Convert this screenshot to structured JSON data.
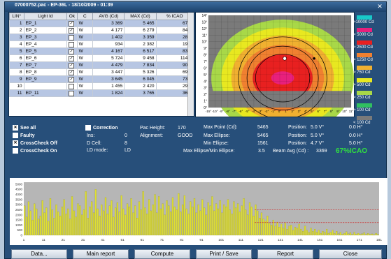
{
  "window": {
    "title": "07000752.pac - EP-36L - 18/10/2009 - 01:39"
  },
  "table": {
    "headers": [
      "LIN°",
      "Light Id",
      "Ok",
      "C",
      "AVG (Cd)",
      "MAX (Cd)",
      "% ICAO"
    ],
    "rows": [
      {
        "lin": "1",
        "id": "EP_1",
        "ok": true,
        "c": "W",
        "avg": "3 369",
        "max": "5 465",
        "icao": "67%",
        "sel": true
      },
      {
        "lin": "2",
        "id": "EP_2",
        "ok": true,
        "c": "W",
        "avg": "4 177",
        "max": "6 279",
        "icao": "84%",
        "sel": false
      },
      {
        "lin": "3",
        "id": "EP_3",
        "ok": false,
        "c": "W",
        "avg": "1 402",
        "max": "3 359",
        "icao": "28%",
        "sel": true
      },
      {
        "lin": "4",
        "id": "EP_4",
        "ok": false,
        "c": "W",
        "avg": "934",
        "max": "2 382",
        "icao": "19%",
        "sel": false
      },
      {
        "lin": "5",
        "id": "EP_5",
        "ok": true,
        "c": "W",
        "avg": "4 167",
        "max": "6 517",
        "icao": "83%",
        "sel": true
      },
      {
        "lin": "6",
        "id": "EP_6",
        "ok": true,
        "c": "W",
        "avg": "5 724",
        "max": "9 458",
        "icao": "114%",
        "sel": false
      },
      {
        "lin": "7",
        "id": "EP_7",
        "ok": true,
        "c": "W",
        "avg": "4 479",
        "max": "7 834",
        "icao": "90%",
        "sel": true
      },
      {
        "lin": "8",
        "id": "EP_8",
        "ok": true,
        "c": "W",
        "avg": "3 447",
        "max": "5 326",
        "icao": "69%",
        "sel": false
      },
      {
        "lin": "9",
        "id": "EP_9",
        "ok": true,
        "c": "W",
        "avg": "3 645",
        "max": "6 045",
        "icao": "73%",
        "sel": true
      },
      {
        "lin": "10",
        "id": "",
        "ok": false,
        "c": "W",
        "avg": "1 455",
        "max": "2 420",
        "icao": "29%",
        "sel": false
      },
      {
        "lin": "11",
        "id": "EP_11",
        "ok": false,
        "c": "W",
        "avg": "1 824",
        "max": "3 765",
        "icao": "36%",
        "sel": true
      }
    ]
  },
  "isocandela": {
    "y_ticks": [
      "14°",
      "13°",
      "12°",
      "11°",
      "10°",
      "9°",
      "8°",
      "7°",
      "6°",
      "5°",
      "4°",
      "3°",
      "2°",
      "1°",
      "0°"
    ],
    "x_ticks": [
      "-15°",
      "-10°",
      "-9°",
      "-8°",
      "-7°",
      "-6°",
      "-5°",
      "-4°",
      "-3°",
      "-2°",
      "-1°",
      "0°",
      "1°",
      "2°",
      "3°",
      "4°",
      "5°",
      "6°",
      "7°",
      "8°",
      "9°",
      "10°",
      "11°"
    ]
  },
  "legend": [
    {
      "label": ">10000  Cd",
      "color": "#18c8c8"
    },
    {
      "label": "> 5000 Cd",
      "color": "#e8207c"
    },
    {
      "label": "> 2500 Cd",
      "color": "#e82020"
    },
    {
      "label": "> 1250 Cd",
      "color": "#f08030"
    },
    {
      "label": "> 750 Cd",
      "color": "#f0b030"
    },
    {
      "label": "> 500 Cd",
      "color": "#e8e820"
    },
    {
      "label": "> 250 Cd",
      "color": "#a8d848"
    },
    {
      "label": "> 100 Cd",
      "color": "#30c060"
    },
    {
      "label": "< 100 Cd",
      "color": "#7a7a7a"
    }
  ],
  "options": {
    "see_all": "See all",
    "faulty": "Faulty",
    "crosscheck_off": "CrossCheck Off",
    "crosscheck_on": "CrossCheck On",
    "correction": "Correction"
  },
  "info": {
    "ins_label": "Ins:",
    "ins_value": "0",
    "dcell_label": "D Cell:",
    "dcell_value": "8",
    "ldmode_label": "LD mode:",
    "ldmode_value": "LD",
    "pac_height_label": "Pac Height:",
    "pac_height_value": "170",
    "alignment_label": "Alignment:",
    "alignment_value": "GOOD",
    "max_point_label": "Max Point (Cd):",
    "max_point_value": "5465",
    "max_ellipse_label": "Max Ellipse:",
    "max_ellipse_value": "5465",
    "min_ellipse_label": "Min Ellipse:",
    "min_ellipse_value": "1561",
    "position_label": "Position:",
    "pos1_v": "5.0  V°",
    "pos1_h": "0.0  H°",
    "pos2_v": "5.0  V°",
    "pos2_h": "0.0  H°",
    "pos3_v": "4.7  V°",
    "pos3_h": "5.0  H°",
    "ratio_label": "Max Ellipse/Min Ellipse:",
    "ratio_value": "3.5",
    "beam_avg_label": "Beam Avg (Cd) :",
    "beam_avg_value": "3369",
    "icao_pct": "67%ICAO"
  },
  "chart_data": {
    "type": "bar",
    "y_ticks": [
      "5000",
      "4500",
      "4000",
      "3500",
      "3000",
      "2500",
      "2000",
      "1500",
      "1000",
      "500",
      "0"
    ],
    "ylim": [
      0,
      5200
    ],
    "x_ticks": [
      "1",
      "11",
      "21",
      "31",
      "41",
      "51",
      "61",
      "71",
      "81",
      "91",
      "101",
      "111",
      "121",
      "131",
      "141",
      "151",
      "161",
      "171",
      "181"
    ],
    "values": [
      2900,
      1800,
      3300,
      2400,
      1500,
      3100,
      2600,
      1600,
      1900,
      3400,
      2200,
      2700,
      1400,
      3600,
      2500,
      1700,
      3000,
      2300,
      1900,
      2800,
      3500,
      2100,
      2600,
      1600,
      3800,
      2400,
      1800,
      3100,
      2900,
      2000,
      2500,
      4300,
      1700,
      2800,
      3300,
      2200,
      4500,
      2600,
      1900,
      3000,
      2400,
      3700,
      2100,
      2900,
      3400,
      1800,
      2700,
      3200,
      2300,
      3900,
      2600,
      2000,
      3100,
      2800,
      3600,
      2200,
      2900,
      1700,
      3300,
      2500,
      4300,
      2700,
      2100,
      3500,
      2400,
      3000,
      4000,
      2200,
      3800,
      2600,
      3100,
      2000,
      3400,
      2900,
      2300,
      3700,
      2800,
      2500,
      4100,
      2300,
      3000,
      3900,
      2600,
      2100,
      3300,
      2800,
      3600,
      2200,
      3000,
      2400,
      3500,
      2700,
      2000,
      3200,
      2900,
      3800,
      2400,
      3100,
      2600,
      3400,
      2200,
      3000,
      2800,
      3500,
      2500,
      2100,
      3300,
      2700,
      3100,
      2300,
      2900,
      3600,
      2500,
      2000,
      3200,
      2800,
      1900,
      3000,
      2400,
      1700,
      2200,
      1600,
      1400,
      1900,
      1200,
      1000,
      1500,
      900,
      1300,
      800,
      1100,
      700,
      1200,
      600,
      900,
      1000,
      500,
      800,
      700,
      1100,
      600,
      400,
      900,
      500,
      300,
      700,
      400,
      600,
      300,
      500,
      200,
      400,
      300,
      600,
      200,
      300,
      500,
      200,
      400,
      150,
      300,
      100,
      200,
      350,
      150,
      250,
      100,
      300,
      120,
      200,
      80,
      150,
      250,
      100,
      180,
      90,
      140,
      60,
      200,
      100
    ],
    "reference_lines": [
      2500,
      1250
    ]
  },
  "buttons": {
    "data": "Data...",
    "main_report": "Main report",
    "compute": "Compute",
    "print_save": "Print / Save",
    "report": "Report",
    "close": "Close"
  }
}
